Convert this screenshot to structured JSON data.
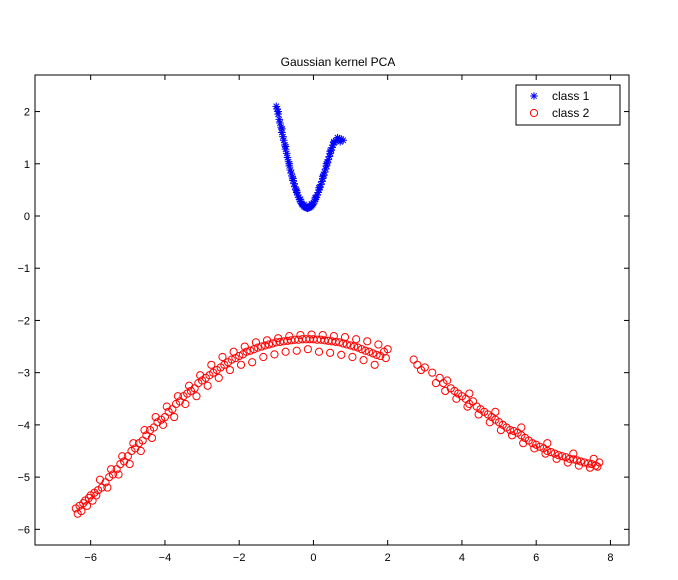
{
  "chart_data": {
    "type": "scatter",
    "title": "Gaussian kernel PCA",
    "xlabel": "",
    "ylabel": "",
    "xlim": [
      -7.5,
      8.5
    ],
    "ylim": [
      -6.3,
      2.7
    ],
    "xticks": [
      -6,
      -4,
      -2,
      0,
      2,
      4,
      6,
      8
    ],
    "yticks": [
      -6,
      -5,
      -4,
      -3,
      -2,
      -1,
      0,
      1,
      2
    ],
    "xtick_labels": [
      "−6",
      "−4",
      "−2",
      "0",
      "2",
      "4",
      "6",
      "8"
    ],
    "ytick_labels": [
      "−6",
      "−5",
      "−4",
      "−3",
      "−2",
      "−1",
      "0",
      "1",
      "2"
    ],
    "grid": false,
    "legend_position": "top-right",
    "colors": {
      "class1": "#0000ff",
      "class2": "#ff0000"
    },
    "series": [
      {
        "name": "class 1",
        "marker": "asterisk",
        "color": "#0000ff",
        "points": [
          [
            -1.0,
            2.1
          ],
          [
            -0.98,
            2.05
          ],
          [
            -0.95,
            1.95
          ],
          [
            -0.92,
            1.85
          ],
          [
            -0.9,
            1.78
          ],
          [
            -0.87,
            1.7
          ],
          [
            -0.85,
            1.6
          ],
          [
            -0.82,
            1.52
          ],
          [
            -0.8,
            1.45
          ],
          [
            -0.77,
            1.36
          ],
          [
            -0.75,
            1.28
          ],
          [
            -0.72,
            1.2
          ],
          [
            -0.7,
            1.12
          ],
          [
            -0.67,
            1.04
          ],
          [
            -0.65,
            0.96
          ],
          [
            -0.62,
            0.88
          ],
          [
            -0.6,
            0.82
          ],
          [
            -0.57,
            0.75
          ],
          [
            -0.55,
            0.68
          ],
          [
            -0.52,
            0.62
          ],
          [
            -0.5,
            0.56
          ],
          [
            -0.47,
            0.5
          ],
          [
            -0.45,
            0.45
          ],
          [
            -0.42,
            0.4
          ],
          [
            -0.4,
            0.36
          ],
          [
            -0.37,
            0.31
          ],
          [
            -0.35,
            0.28
          ],
          [
            -0.32,
            0.24
          ],
          [
            -0.3,
            0.22
          ],
          [
            -0.27,
            0.2
          ],
          [
            -0.25,
            0.18
          ],
          [
            -0.22,
            0.17
          ],
          [
            -0.2,
            0.16
          ],
          [
            -0.17,
            0.15
          ],
          [
            -0.15,
            0.15
          ],
          [
            -0.12,
            0.16
          ],
          [
            -0.1,
            0.17
          ],
          [
            -0.07,
            0.18
          ],
          [
            -0.05,
            0.2
          ],
          [
            -0.02,
            0.22
          ],
          [
            0.0,
            0.25
          ],
          [
            0.03,
            0.28
          ],
          [
            0.05,
            0.32
          ],
          [
            0.08,
            0.36
          ],
          [
            0.1,
            0.4
          ],
          [
            0.13,
            0.45
          ],
          [
            0.15,
            0.5
          ],
          [
            0.18,
            0.55
          ],
          [
            0.2,
            0.6
          ],
          [
            0.23,
            0.66
          ],
          [
            0.25,
            0.72
          ],
          [
            0.28,
            0.78
          ],
          [
            0.3,
            0.84
          ],
          [
            0.33,
            0.9
          ],
          [
            0.35,
            0.96
          ],
          [
            0.38,
            1.02
          ],
          [
            0.4,
            1.08
          ],
          [
            0.43,
            1.14
          ],
          [
            0.45,
            1.2
          ],
          [
            0.48,
            1.26
          ],
          [
            0.5,
            1.31
          ],
          [
            0.53,
            1.36
          ],
          [
            0.55,
            1.4
          ],
          [
            0.6,
            1.44
          ],
          [
            0.65,
            1.46
          ],
          [
            0.7,
            1.48
          ],
          [
            0.75,
            1.47
          ],
          [
            0.8,
            1.45
          ],
          [
            -0.95,
            2.0
          ],
          [
            -0.85,
            1.67
          ],
          [
            -0.75,
            1.33
          ],
          [
            -0.65,
            1.0
          ],
          [
            -0.55,
            0.72
          ],
          [
            -0.45,
            0.48
          ],
          [
            -0.35,
            0.32
          ],
          [
            -0.25,
            0.22
          ],
          [
            -0.15,
            0.18
          ],
          [
            -0.05,
            0.23
          ],
          [
            0.05,
            0.35
          ],
          [
            0.15,
            0.54
          ],
          [
            0.25,
            0.76
          ],
          [
            0.35,
            1.0
          ],
          [
            0.45,
            1.24
          ],
          [
            0.55,
            1.42
          ],
          [
            0.65,
            1.5
          ],
          [
            0.72,
            1.42
          ]
        ]
      },
      {
        "name": "class 2",
        "marker": "circle",
        "color": "#ff0000",
        "points": [
          [
            -6.4,
            -5.6
          ],
          [
            -6.35,
            -5.7
          ],
          [
            -6.3,
            -5.55
          ],
          [
            -6.25,
            -5.65
          ],
          [
            -6.2,
            -5.5
          ],
          [
            -6.15,
            -5.45
          ],
          [
            -6.1,
            -5.55
          ],
          [
            -6.05,
            -5.4
          ],
          [
            -6.0,
            -5.35
          ],
          [
            -5.95,
            -5.45
          ],
          [
            -5.9,
            -5.3
          ],
          [
            -5.8,
            -5.25
          ],
          [
            -5.7,
            -5.2
          ],
          [
            -5.6,
            -5.1
          ],
          [
            -5.5,
            -5.0
          ],
          [
            -5.4,
            -4.95
          ],
          [
            -5.3,
            -4.85
          ],
          [
            -5.2,
            -4.75
          ],
          [
            -5.1,
            -4.7
          ],
          [
            -5.0,
            -4.6
          ],
          [
            -4.9,
            -4.5
          ],
          [
            -4.8,
            -4.45
          ],
          [
            -4.7,
            -4.35
          ],
          [
            -4.6,
            -4.3
          ],
          [
            -4.5,
            -4.2
          ],
          [
            -4.4,
            -4.1
          ],
          [
            -4.3,
            -4.05
          ],
          [
            -4.2,
            -3.95
          ],
          [
            -4.1,
            -3.9
          ],
          [
            -4.0,
            -3.85
          ],
          [
            -3.9,
            -3.75
          ],
          [
            -3.8,
            -3.7
          ],
          [
            -3.7,
            -3.6
          ],
          [
            -3.6,
            -3.55
          ],
          [
            -3.5,
            -3.45
          ],
          [
            -3.4,
            -3.4
          ],
          [
            -3.3,
            -3.35
          ],
          [
            -3.2,
            -3.3
          ],
          [
            -3.1,
            -3.2
          ],
          [
            -3.0,
            -3.15
          ],
          [
            -2.9,
            -3.1
          ],
          [
            -2.8,
            -3.05
          ],
          [
            -2.7,
            -3.0
          ],
          [
            -2.6,
            -2.95
          ],
          [
            -2.5,
            -2.9
          ],
          [
            -2.4,
            -2.85
          ],
          [
            -2.3,
            -2.8
          ],
          [
            -2.2,
            -2.75
          ],
          [
            -2.1,
            -2.72
          ],
          [
            -2.0,
            -2.68
          ],
          [
            -1.9,
            -2.65
          ],
          [
            -1.8,
            -2.6
          ],
          [
            -1.7,
            -2.58
          ],
          [
            -1.6,
            -2.55
          ],
          [
            -1.5,
            -2.52
          ],
          [
            -1.4,
            -2.5
          ],
          [
            -1.3,
            -2.48
          ],
          [
            -1.2,
            -2.46
          ],
          [
            -1.1,
            -2.44
          ],
          [
            -1.0,
            -2.42
          ],
          [
            -0.9,
            -2.41
          ],
          [
            -0.8,
            -2.4
          ],
          [
            -0.7,
            -2.39
          ],
          [
            -0.6,
            -2.38
          ],
          [
            -0.5,
            -2.37
          ],
          [
            -0.4,
            -2.37
          ],
          [
            -0.3,
            -2.36
          ],
          [
            -0.2,
            -2.36
          ],
          [
            -0.1,
            -2.36
          ],
          [
            0.0,
            -2.36
          ],
          [
            0.1,
            -2.37
          ],
          [
            0.2,
            -2.37
          ],
          [
            0.3,
            -2.38
          ],
          [
            0.4,
            -2.39
          ],
          [
            0.5,
            -2.4
          ],
          [
            0.6,
            -2.41
          ],
          [
            0.7,
            -2.42
          ],
          [
            0.8,
            -2.44
          ],
          [
            0.9,
            -2.46
          ],
          [
            1.0,
            -2.48
          ],
          [
            1.1,
            -2.5
          ],
          [
            1.2,
            -2.52
          ],
          [
            1.3,
            -2.55
          ],
          [
            1.4,
            -2.58
          ],
          [
            1.5,
            -2.6
          ],
          [
            1.6,
            -2.63
          ],
          [
            1.7,
            -2.66
          ],
          [
            1.8,
            -2.68
          ],
          [
            1.9,
            -2.6
          ],
          [
            2.0,
            -2.55
          ],
          [
            -5.85,
            -5.35
          ],
          [
            -5.55,
            -5.2
          ],
          [
            -5.25,
            -4.95
          ],
          [
            -4.95,
            -4.75
          ],
          [
            -4.65,
            -4.5
          ],
          [
            -4.35,
            -4.25
          ],
          [
            -4.05,
            -4.0
          ],
          [
            -3.75,
            -3.85
          ],
          [
            -3.45,
            -3.6
          ],
          [
            -3.15,
            -3.45
          ],
          [
            -2.85,
            -3.25
          ],
          [
            -2.55,
            -3.1
          ],
          [
            -2.25,
            -2.95
          ],
          [
            -1.95,
            -2.85
          ],
          [
            -1.65,
            -2.8
          ],
          [
            -1.35,
            -2.7
          ],
          [
            -1.05,
            -2.65
          ],
          [
            -0.75,
            -2.6
          ],
          [
            -0.45,
            -2.58
          ],
          [
            -0.15,
            -2.55
          ],
          [
            0.15,
            -2.6
          ],
          [
            0.45,
            -2.62
          ],
          [
            0.75,
            -2.66
          ],
          [
            1.05,
            -2.7
          ],
          [
            1.35,
            -2.76
          ],
          [
            1.65,
            -2.85
          ],
          [
            1.95,
            -2.72
          ],
          [
            -5.75,
            -5.05
          ],
          [
            -5.45,
            -4.85
          ],
          [
            -5.15,
            -4.6
          ],
          [
            -4.85,
            -4.35
          ],
          [
            -4.55,
            -4.1
          ],
          [
            -4.25,
            -3.85
          ],
          [
            -3.95,
            -3.65
          ],
          [
            -3.65,
            -3.45
          ],
          [
            -3.35,
            -3.25
          ],
          [
            -3.05,
            -3.05
          ],
          [
            -2.75,
            -2.85
          ],
          [
            -2.45,
            -2.7
          ],
          [
            -2.15,
            -2.6
          ],
          [
            -1.85,
            -2.5
          ],
          [
            -1.55,
            -2.42
          ],
          [
            -1.25,
            -2.38
          ],
          [
            -0.95,
            -2.34
          ],
          [
            -0.65,
            -2.3
          ],
          [
            -0.35,
            -2.28
          ],
          [
            -0.05,
            -2.27
          ],
          [
            0.25,
            -2.28
          ],
          [
            0.55,
            -2.3
          ],
          [
            0.85,
            -2.32
          ],
          [
            1.15,
            -2.36
          ],
          [
            1.45,
            -2.4
          ],
          [
            1.75,
            -2.46
          ],
          [
            2.7,
            -2.75
          ],
          [
            2.8,
            -2.85
          ],
          [
            2.9,
            -2.95
          ],
          [
            3.0,
            -2.9
          ],
          [
            3.2,
            -3.0
          ],
          [
            3.4,
            -3.1
          ],
          [
            3.5,
            -3.2
          ],
          [
            3.6,
            -3.15
          ],
          [
            3.7,
            -3.3
          ],
          [
            3.8,
            -3.35
          ],
          [
            3.9,
            -3.4
          ],
          [
            4.0,
            -3.45
          ],
          [
            4.1,
            -3.5
          ],
          [
            4.2,
            -3.6
          ],
          [
            4.3,
            -3.55
          ],
          [
            4.4,
            -3.65
          ],
          [
            4.5,
            -3.7
          ],
          [
            4.6,
            -3.75
          ],
          [
            4.7,
            -3.8
          ],
          [
            4.8,
            -3.85
          ],
          [
            4.9,
            -3.9
          ],
          [
            5.0,
            -3.95
          ],
          [
            5.1,
            -4.0
          ],
          [
            5.2,
            -4.05
          ],
          [
            5.3,
            -4.1
          ],
          [
            5.4,
            -4.12
          ],
          [
            5.5,
            -4.15
          ],
          [
            5.6,
            -4.2
          ],
          [
            5.7,
            -4.25
          ],
          [
            5.8,
            -4.3
          ],
          [
            5.9,
            -4.35
          ],
          [
            6.0,
            -4.38
          ],
          [
            6.1,
            -4.42
          ],
          [
            6.2,
            -4.45
          ],
          [
            6.3,
            -4.5
          ],
          [
            6.4,
            -4.52
          ],
          [
            6.5,
            -4.55
          ],
          [
            6.6,
            -4.58
          ],
          [
            6.7,
            -4.6
          ],
          [
            6.8,
            -4.62
          ],
          [
            6.9,
            -4.65
          ],
          [
            7.0,
            -4.66
          ],
          [
            7.1,
            -4.68
          ],
          [
            7.2,
            -4.7
          ],
          [
            7.3,
            -4.72
          ],
          [
            7.4,
            -4.74
          ],
          [
            7.5,
            -4.75
          ],
          [
            7.6,
            -4.78
          ],
          [
            7.65,
            -4.8
          ],
          [
            7.7,
            -4.72
          ],
          [
            3.3,
            -3.2
          ],
          [
            3.55,
            -3.35
          ],
          [
            3.85,
            -3.5
          ],
          [
            4.15,
            -3.65
          ],
          [
            4.45,
            -3.8
          ],
          [
            4.75,
            -3.95
          ],
          [
            5.05,
            -4.1
          ],
          [
            5.35,
            -4.2
          ],
          [
            5.65,
            -4.35
          ],
          [
            5.95,
            -4.45
          ],
          [
            6.25,
            -4.55
          ],
          [
            6.55,
            -4.65
          ],
          [
            6.85,
            -4.72
          ],
          [
            7.15,
            -4.78
          ],
          [
            7.45,
            -4.82
          ],
          [
            4.2,
            -3.4
          ],
          [
            4.9,
            -3.75
          ],
          [
            5.6,
            -4.05
          ],
          [
            6.3,
            -4.35
          ],
          [
            7.0,
            -4.55
          ],
          [
            7.55,
            -4.65
          ]
        ]
      }
    ]
  }
}
